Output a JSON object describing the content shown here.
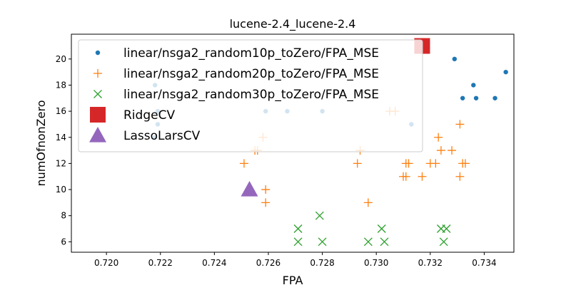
{
  "chart_data": {
    "type": "scatter",
    "title": "lucene-2.4_lucene-2.4",
    "xlabel": "FPA",
    "ylabel": "numOfnonZero",
    "xlim": [
      0.7187,
      0.7351
    ],
    "ylim": [
      5.2,
      21.9
    ],
    "xticks": [
      0.72,
      0.722,
      0.724,
      0.726,
      0.728,
      0.73,
      0.732,
      0.734
    ],
    "xtick_labels": [
      "0.720",
      "0.722",
      "0.724",
      "0.726",
      "0.728",
      "0.730",
      "0.732",
      "0.734"
    ],
    "yticks": [
      6,
      8,
      10,
      12,
      14,
      16,
      18,
      20
    ],
    "ytick_labels": [
      "6",
      "8",
      "10",
      "12",
      "14",
      "16",
      "18",
      "20"
    ],
    "grid": false,
    "legend_position": "upper-left",
    "series": [
      {
        "name": "linear/nsga2_random10p_toZero/FPA_MSE",
        "marker": "dot",
        "color": "#1f77b4",
        "points": [
          [
            0.7218,
            18
          ],
          [
            0.7219,
            16
          ],
          [
            0.7219,
            15
          ],
          [
            0.7218,
            14
          ],
          [
            0.7259,
            16
          ],
          [
            0.7267,
            16
          ],
          [
            0.728,
            16
          ],
          [
            0.7313,
            15
          ],
          [
            0.7329,
            20
          ],
          [
            0.7332,
            17
          ],
          [
            0.7336,
            18
          ],
          [
            0.7337,
            17
          ],
          [
            0.7344,
            17
          ],
          [
            0.7348,
            19
          ]
        ]
      },
      {
        "name": "linear/nsga2_random20p_toZero/FPA_MSE",
        "marker": "plus",
        "color": "#ff7f0e",
        "points": [
          [
            0.7251,
            12
          ],
          [
            0.7255,
            13
          ],
          [
            0.7256,
            13
          ],
          [
            0.7258,
            14
          ],
          [
            0.7259,
            10
          ],
          [
            0.7259,
            9
          ],
          [
            0.7293,
            12
          ],
          [
            0.7294,
            13
          ],
          [
            0.7297,
            9
          ],
          [
            0.7305,
            16
          ],
          [
            0.7307,
            16
          ],
          [
            0.731,
            11
          ],
          [
            0.7311,
            11
          ],
          [
            0.7311,
            12
          ],
          [
            0.7312,
            12
          ],
          [
            0.7317,
            11
          ],
          [
            0.732,
            12
          ],
          [
            0.7322,
            12
          ],
          [
            0.7323,
            14
          ],
          [
            0.7324,
            13
          ],
          [
            0.7328,
            13
          ],
          [
            0.7331,
            15
          ],
          [
            0.7331,
            11
          ],
          [
            0.7332,
            12
          ],
          [
            0.7333,
            12
          ]
        ]
      },
      {
        "name": "linear/nsga2_random30p_toZero/FPA_MSE",
        "marker": "x",
        "color": "#2ca02c",
        "points": [
          [
            0.7271,
            7
          ],
          [
            0.7271,
            6
          ],
          [
            0.7279,
            8
          ],
          [
            0.728,
            6
          ],
          [
            0.7297,
            6
          ],
          [
            0.7302,
            7
          ],
          [
            0.7303,
            6
          ],
          [
            0.7324,
            7
          ],
          [
            0.7326,
            7
          ],
          [
            0.7325,
            6
          ]
        ]
      },
      {
        "name": "RidgeCV",
        "marker": "square",
        "color": "#d62728",
        "points": [
          [
            0.7317,
            21
          ]
        ]
      },
      {
        "name": "LassoLarsCV",
        "marker": "triangle",
        "color": "#9467bd",
        "points": [
          [
            0.7253,
            10
          ]
        ]
      }
    ]
  }
}
